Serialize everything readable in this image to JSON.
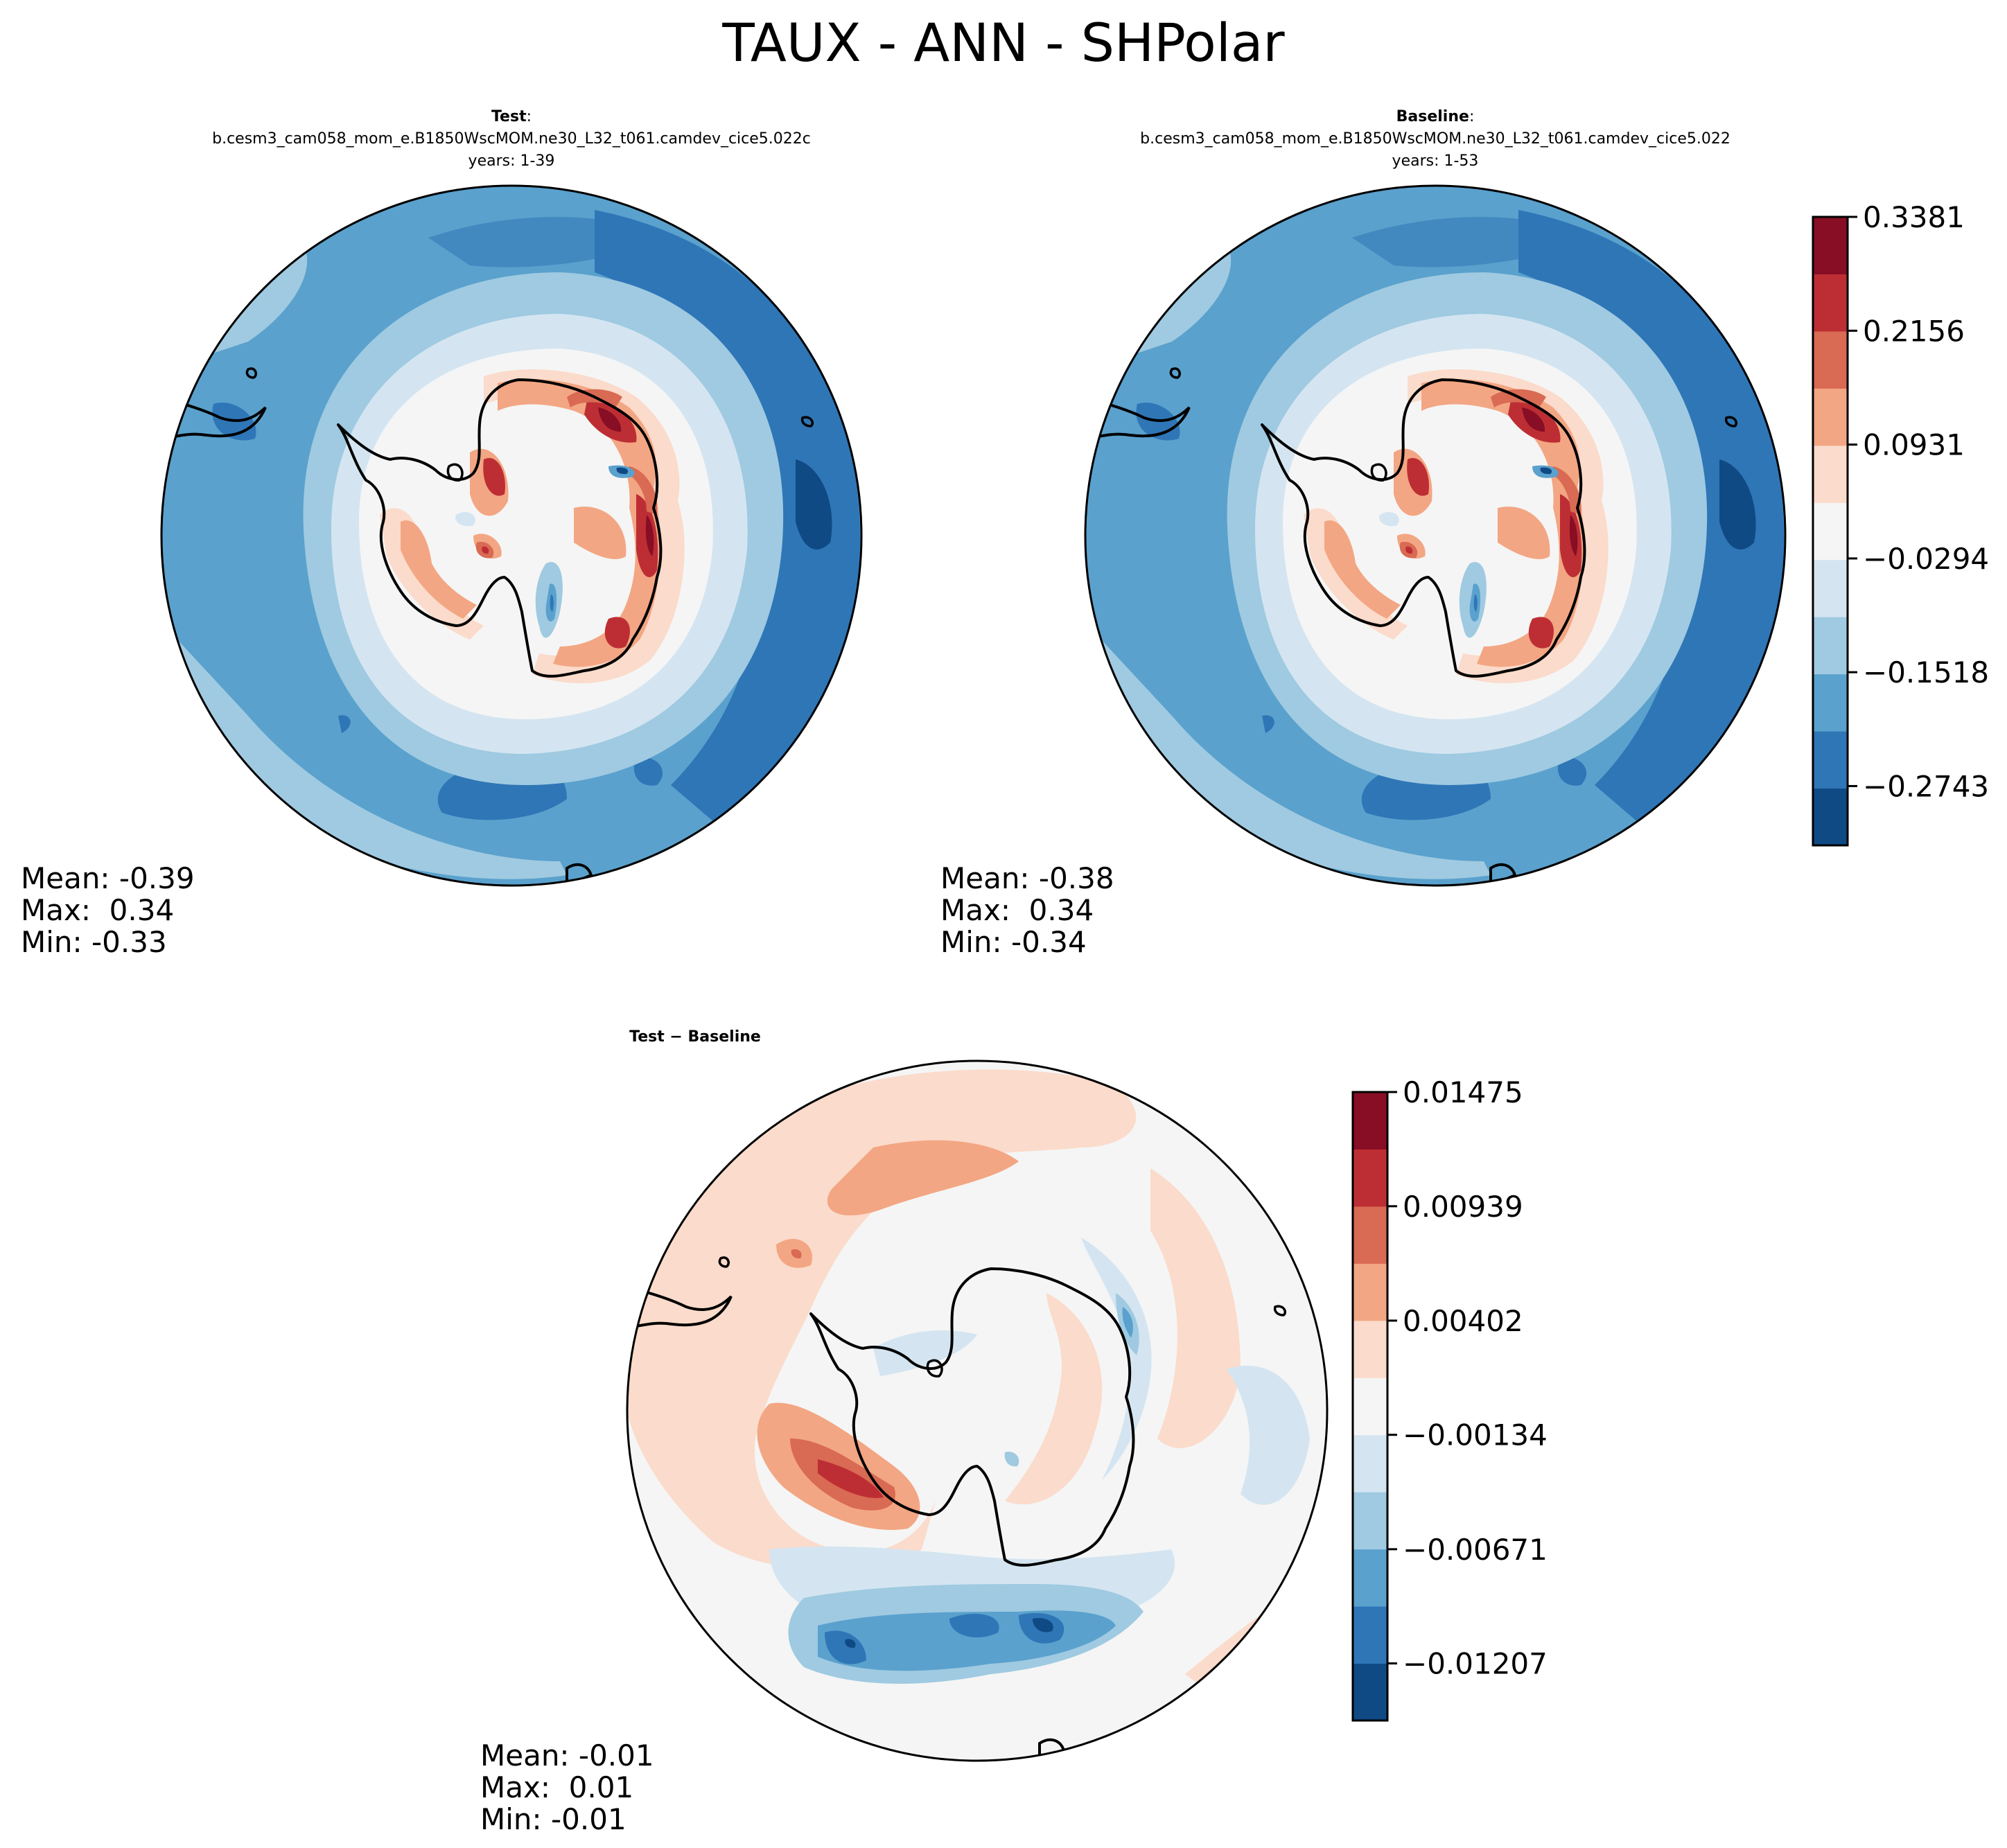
{
  "title": "TAUX - ANN - SHPolar",
  "panels": [
    {
      "id": "test",
      "heading": "Test",
      "heading_suffix": ":",
      "case": "b.cesm3_cam058_mom_e.B1850WscMOM.ne30_L32_t061.camdev_cice5.022c",
      "years": "years: 1-39",
      "stats": {
        "mean": "Mean: -0.39",
        "max": "Max:  0.34",
        "min": "Min: -0.33"
      }
    },
    {
      "id": "baseline",
      "heading": "Baseline",
      "heading_suffix": ":",
      "case": "b.cesm3_cam058_mom_e.B1850WscMOM.ne30_L32_t061.camdev_cice5.022",
      "years": "years: 1-53",
      "stats": {
        "mean": "Mean: -0.38",
        "max": "Max:  0.34",
        "min": "Min: -0.34"
      }
    },
    {
      "id": "diff",
      "heading": "Test − Baseline",
      "heading_suffix": "",
      "case": "",
      "years": "",
      "stats": {
        "mean": "Mean: -0.01",
        "max": "Max:  0.01",
        "min": "Min: -0.01"
      }
    }
  ],
  "chart_data": [
    {
      "type": "heatmap",
      "projection": "south-polar-stereographic",
      "panel": "test",
      "mean": -0.39,
      "max": 0.34,
      "min": -0.33,
      "levels": [
        -0.3381,
        -0.2743,
        -0.2131,
        -0.1518,
        -0.0906,
        -0.0294,
        0.0319,
        0.0931,
        0.1544,
        0.2156,
        0.2769,
        0.3381
      ],
      "shared_colorbar": "main"
    },
    {
      "type": "heatmap",
      "projection": "south-polar-stereographic",
      "panel": "baseline",
      "mean": -0.38,
      "max": 0.34,
      "min": -0.34,
      "levels": [
        -0.3381,
        -0.2743,
        -0.2131,
        -0.1518,
        -0.0906,
        -0.0294,
        0.0319,
        0.0931,
        0.1544,
        0.2156,
        0.2769,
        0.3381
      ],
      "shared_colorbar": "main"
    },
    {
      "type": "heatmap",
      "projection": "south-polar-stereographic",
      "panel": "diff",
      "mean": -0.01,
      "max": 0.01,
      "min": -0.01,
      "levels": [
        -0.01475,
        -0.01207,
        -0.00939,
        -0.00671,
        -0.00402,
        -0.00134,
        0.00134,
        0.00402,
        0.00671,
        0.00939,
        0.01207,
        0.01475
      ],
      "shared_colorbar": "diff"
    }
  ],
  "colorbars": {
    "main": {
      "ticks": [
        "0.3381",
        "0.2156",
        "0.0931",
        "−0.0294",
        "−0.1518",
        "−0.2743"
      ],
      "tick_values": [
        0.3381,
        0.2156,
        0.0931,
        -0.0294,
        -0.1518,
        -0.2743
      ],
      "vmin": -0.3381,
      "vmax": 0.3381,
      "colors": [
        "#0f4a85",
        "#2f76b7",
        "#5aa1cd",
        "#9fcae1",
        "#d4e5f1",
        "#f5f5f5",
        "#fbdbcb",
        "#f3a683",
        "#d96a53",
        "#bd2e34",
        "#870e24"
      ]
    },
    "diff": {
      "ticks": [
        "0.01475",
        "0.00939",
        "0.00402",
        "−0.00134",
        "−0.00671",
        "−0.01207"
      ],
      "tick_values": [
        0.01475,
        0.00939,
        0.00402,
        -0.00134,
        -0.00671,
        -0.01207
      ],
      "vmin": -0.01475,
      "vmax": 0.01475,
      "colors": [
        "#0f4a85",
        "#2f76b7",
        "#5aa1cd",
        "#9fcae1",
        "#d4e5f1",
        "#f5f5f5",
        "#fbdbcb",
        "#f3a683",
        "#d96a53",
        "#bd2e34",
        "#870e24"
      ]
    }
  }
}
